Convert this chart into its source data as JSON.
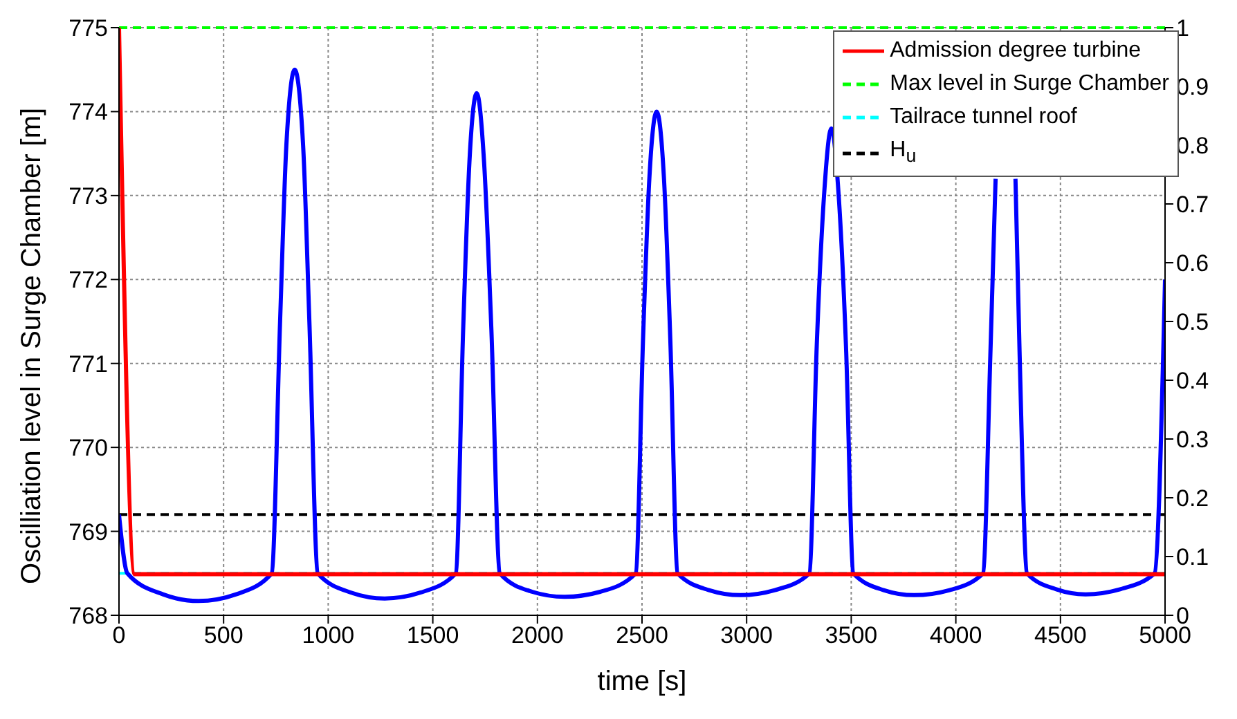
{
  "chart_data": {
    "type": "line",
    "xlabel": "time [s]",
    "ylabel": "Oscilliation level in Surge Chamber [m]",
    "xlim": [
      0,
      5000
    ],
    "xticks": [
      0,
      500,
      1000,
      1500,
      2000,
      2500,
      3000,
      3500,
      4000,
      4500,
      5000
    ],
    "ylim": [
      768,
      775
    ],
    "yticks": [
      768,
      769,
      770,
      771,
      772,
      773,
      774,
      775
    ],
    "y2lim": [
      0,
      1
    ],
    "y2ticks": [
      0,
      0.1,
      0.2,
      0.3,
      0.4,
      0.5,
      0.6,
      0.7,
      0.8,
      0.9,
      1
    ],
    "grid": true,
    "legend": "top right",
    "marker": "none",
    "series": [
      {
        "color": "#0000ff",
        "line_style": "solid",
        "x": [
          0,
          40,
          210,
          380,
          560,
          730,
          770,
          800,
          840,
          880,
          910,
          950,
          1110,
          1270,
          1440,
          1610,
          1645,
          1675,
          1710,
          1745,
          1780,
          1820,
          1975,
          2130,
          2300,
          2470,
          2505,
          2535,
          2570,
          2605,
          2635,
          2670,
          2820,
          2970,
          3135,
          3300,
          3335,
          3370,
          3405,
          3440,
          3475,
          3510,
          3655,
          3800,
          3970,
          4130,
          4165,
          4190,
          4237,
          4285,
          4305,
          4340,
          4480,
          4620,
          4785,
          4950,
          5000
        ],
        "values": [
          769.2,
          768.5,
          768.25,
          768.17,
          768.25,
          768.5,
          771.5,
          773.6,
          774.5,
          773.6,
          771.5,
          768.5,
          768.27,
          768.2,
          768.27,
          768.5,
          771.4,
          773.4,
          774.22,
          773.4,
          771.4,
          768.5,
          768.28,
          768.22,
          768.28,
          768.5,
          771.3,
          773.2,
          774.0,
          773.2,
          771.3,
          768.5,
          768.3,
          768.24,
          768.3,
          768.5,
          771.2,
          773.0,
          773.8,
          773.0,
          771.2,
          768.5,
          768.3,
          768.24,
          768.3,
          768.5,
          771.1,
          773.2,
          null,
          773.2,
          771.1,
          768.5,
          768.31,
          768.25,
          768.31,
          768.5,
          772.0
        ]
      },
      {
        "name": "Admission degree turbine",
        "color": "#ff0000",
        "axis": "y2",
        "line_style": "solid",
        "x": [
          0,
          75,
          5000
        ],
        "values": [
          1,
          0.07,
          0.07
        ]
      }
    ],
    "ref_lines": [
      {
        "axis": "y",
        "value": 775,
        "label": "Max level in Surge Chamber",
        "color": "#00ff00",
        "line_style": "dashed"
      },
      {
        "axis": "y",
        "value": 768.5,
        "label": "Tailrace tunnel roof",
        "color": "#00ffff",
        "line_style": "dashed"
      },
      {
        "axis": "y",
        "value": 769.2,
        "label": "H$_{u}$",
        "color": "#000000",
        "line_style": "dashed"
      }
    ]
  }
}
